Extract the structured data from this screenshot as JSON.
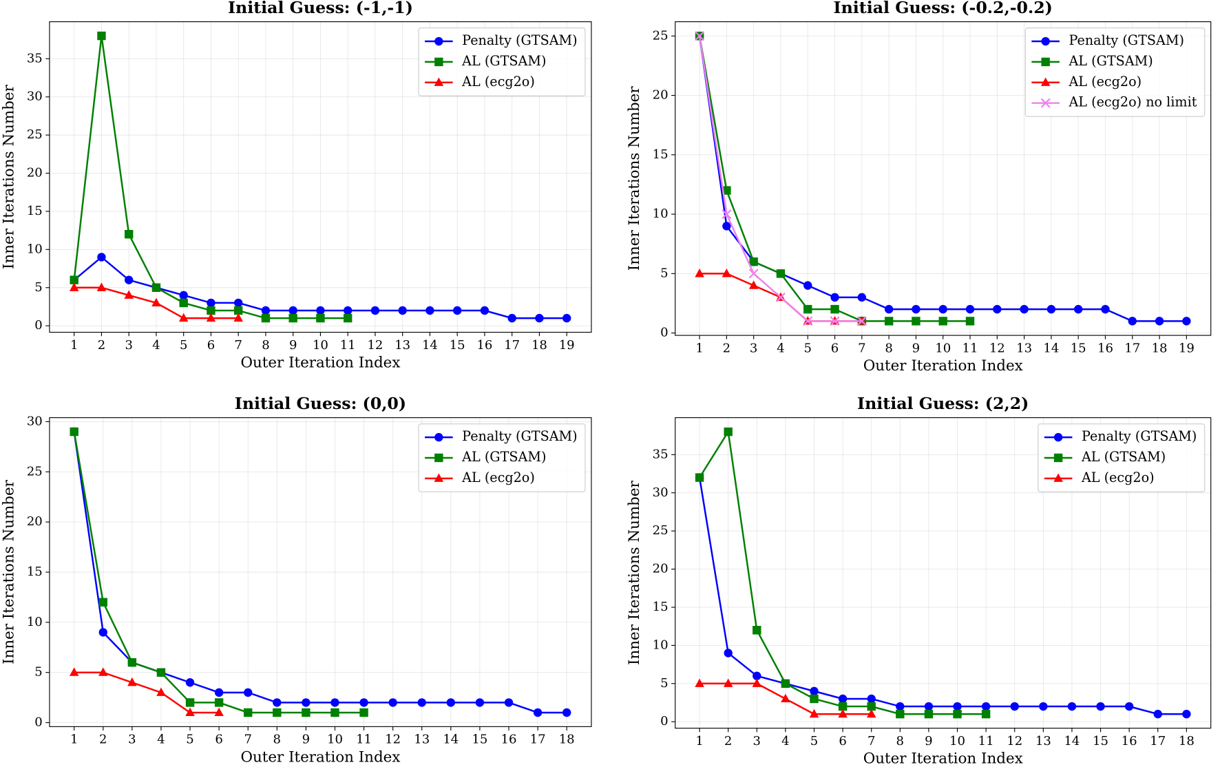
{
  "chart_data": [
    {
      "type": "line",
      "title": "Initial Guess: (-1,-1)",
      "xlabel": "Outer Iteration Index",
      "ylabel": "Inner Iterations Number",
      "x": [
        1,
        2,
        3,
        4,
        5,
        6,
        7,
        8,
        9,
        10,
        11,
        12,
        13,
        14,
        15,
        16,
        17,
        18,
        19
      ],
      "xlim": [
        0.1,
        19.9
      ],
      "xticks": [
        1,
        2,
        3,
        4,
        5,
        6,
        7,
        8,
        9,
        10,
        11,
        12,
        13,
        14,
        15,
        16,
        17,
        18,
        19
      ],
      "ylim": [
        -0.85,
        39.85
      ],
      "yticks": [
        0,
        5,
        10,
        15,
        20,
        25,
        30,
        35
      ],
      "grid": true,
      "legend": "upper right",
      "series": [
        {
          "name": "Penalty (GTSAM)",
          "color": "#0000ff",
          "marker": "circle",
          "values": [
            6,
            9,
            6,
            5,
            4,
            3,
            3,
            2,
            2,
            2,
            2,
            2,
            2,
            2,
            2,
            2,
            1,
            1,
            1
          ]
        },
        {
          "name": "AL (GTSAM)",
          "color": "#008000",
          "marker": "square",
          "values": [
            6,
            38,
            12,
            5,
            3,
            2,
            2,
            1,
            1,
            1,
            1,
            null,
            null,
            null,
            null,
            null,
            null,
            null,
            null
          ]
        },
        {
          "name": "AL (ecg2o)",
          "color": "#ff0000",
          "marker": "triangle",
          "values": [
            5,
            5,
            4,
            3,
            1,
            1,
            1,
            null,
            null,
            null,
            null,
            null,
            null,
            null,
            null,
            null,
            null,
            null,
            null
          ]
        }
      ]
    },
    {
      "type": "line",
      "title": "Initial Guess: (-0.2,-0.2)",
      "xlabel": "Outer Iteration Index",
      "ylabel": "Inner Iterations Number",
      "x": [
        1,
        2,
        3,
        4,
        5,
        6,
        7,
        8,
        9,
        10,
        11,
        12,
        13,
        14,
        15,
        16,
        17,
        18,
        19
      ],
      "xlim": [
        0.1,
        19.9
      ],
      "xticks": [
        1,
        2,
        3,
        4,
        5,
        6,
        7,
        8,
        9,
        10,
        11,
        12,
        13,
        14,
        15,
        16,
        17,
        18,
        19
      ],
      "ylim": [
        -0.2,
        26.2
      ],
      "yticks": [
        0,
        5,
        10,
        15,
        20,
        25
      ],
      "grid": true,
      "legend": "upper right",
      "series": [
        {
          "name": "Penalty (GTSAM)",
          "color": "#0000ff",
          "marker": "circle",
          "values": [
            25,
            9,
            6,
            5,
            4,
            3,
            3,
            2,
            2,
            2,
            2,
            2,
            2,
            2,
            2,
            2,
            1,
            1,
            1
          ]
        },
        {
          "name": "AL (GTSAM)",
          "color": "#008000",
          "marker": "square",
          "values": [
            25,
            12,
            6,
            5,
            2,
            2,
            1,
            1,
            1,
            1,
            1,
            null,
            null,
            null,
            null,
            null,
            null,
            null,
            null
          ]
        },
        {
          "name": "AL (ecg2o)",
          "color": "#ff0000",
          "marker": "triangle",
          "values": [
            5,
            5,
            4,
            3,
            1,
            1,
            1,
            null,
            null,
            null,
            null,
            null,
            null,
            null,
            null,
            null,
            null,
            null,
            null
          ]
        },
        {
          "name": "AL (ecg2o) no limit",
          "color": "#ee82ee",
          "marker": "x",
          "values": [
            25,
            10,
            5,
            3,
            1,
            1,
            1,
            null,
            null,
            null,
            null,
            null,
            null,
            null,
            null,
            null,
            null,
            null,
            null
          ]
        }
      ]
    },
    {
      "type": "line",
      "title": "Initial Guess: (0,0)",
      "xlabel": "Outer Iteration Index",
      "ylabel": "Inner Iterations Number",
      "x": [
        1,
        2,
        3,
        4,
        5,
        6,
        7,
        8,
        9,
        10,
        11,
        12,
        13,
        14,
        15,
        16,
        17,
        18
      ],
      "xlim": [
        0.15,
        18.85
      ],
      "xticks": [
        1,
        2,
        3,
        4,
        5,
        6,
        7,
        8,
        9,
        10,
        11,
        12,
        13,
        14,
        15,
        16,
        17,
        18
      ],
      "ylim": [
        -0.4,
        30.4
      ],
      "yticks": [
        0,
        5,
        10,
        15,
        20,
        25,
        30
      ],
      "grid": true,
      "legend": "upper right",
      "series": [
        {
          "name": "Penalty (GTSAM)",
          "color": "#0000ff",
          "marker": "circle",
          "values": [
            29,
            9,
            6,
            5,
            4,
            3,
            3,
            2,
            2,
            2,
            2,
            2,
            2,
            2,
            2,
            2,
            1,
            1
          ]
        },
        {
          "name": "AL (GTSAM)",
          "color": "#008000",
          "marker": "square",
          "values": [
            29,
            12,
            6,
            5,
            2,
            2,
            1,
            1,
            1,
            1,
            1,
            null,
            null,
            null,
            null,
            null,
            null,
            null
          ]
        },
        {
          "name": "AL (ecg2o)",
          "color": "#ff0000",
          "marker": "triangle",
          "values": [
            5,
            5,
            4,
            3,
            1,
            1,
            null,
            null,
            null,
            null,
            null,
            null,
            null,
            null,
            null,
            null,
            null,
            null
          ]
        }
      ]
    },
    {
      "type": "line",
      "title": "Initial Guess: (2,2)",
      "xlabel": "Outer Iteration Index",
      "ylabel": "Inner Iterations Number",
      "x": [
        1,
        2,
        3,
        4,
        5,
        6,
        7,
        8,
        9,
        10,
        11,
        12,
        13,
        14,
        15,
        16,
        17,
        18
      ],
      "xlim": [
        0.15,
        18.85
      ],
      "xticks": [
        1,
        2,
        3,
        4,
        5,
        6,
        7,
        8,
        9,
        10,
        11,
        12,
        13,
        14,
        15,
        16,
        17,
        18
      ],
      "ylim": [
        -0.85,
        39.85
      ],
      "yticks": [
        0,
        5,
        10,
        15,
        20,
        25,
        30,
        35
      ],
      "grid": true,
      "legend": "upper right",
      "series": [
        {
          "name": "Penalty (GTSAM)",
          "color": "#0000ff",
          "marker": "circle",
          "values": [
            32,
            9,
            6,
            5,
            4,
            3,
            3,
            2,
            2,
            2,
            2,
            2,
            2,
            2,
            2,
            2,
            1,
            1
          ]
        },
        {
          "name": "AL (GTSAM)",
          "color": "#008000",
          "marker": "square",
          "values": [
            32,
            38,
            12,
            5,
            3,
            2,
            2,
            1,
            1,
            1,
            1,
            null,
            null,
            null,
            null,
            null,
            null,
            null
          ]
        },
        {
          "name": "AL (ecg2o)",
          "color": "#ff0000",
          "marker": "triangle",
          "values": [
            5,
            5,
            5,
            3,
            1,
            1,
            1,
            null,
            null,
            null,
            null,
            null,
            null,
            null,
            null,
            null,
            null,
            null
          ]
        }
      ]
    }
  ]
}
